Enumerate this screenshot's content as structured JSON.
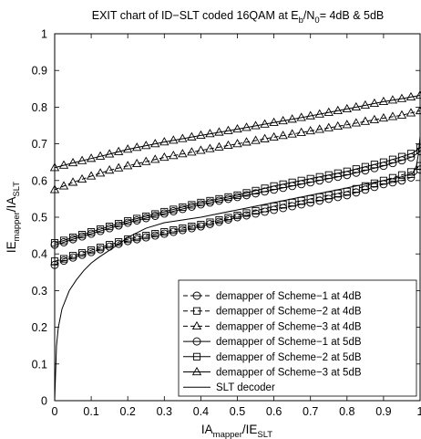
{
  "chart_data": {
    "type": "line",
    "title": {
      "main": "EXIT chart of ID−SLT coded 16QAM at E",
      "sub1": "b",
      "mid": "/N",
      "sub2": "0",
      "tail": "= 4dB & 5dB"
    },
    "xlabel": {
      "main1": "IA",
      "sub1": "mapper",
      "mid": "/IE",
      "sub2": "SLT"
    },
    "ylabel": {
      "main1": "IE",
      "sub1": "mapper",
      "mid": "/IA",
      "sub2": "SLT"
    },
    "xlim": [
      0,
      1
    ],
    "ylim": [
      0,
      1
    ],
    "x_ticks": [
      "0",
      "0.1",
      "0.2",
      "0.3",
      "0.4",
      "0.5",
      "0.6",
      "0.7",
      "0.8",
      "0.9",
      "1"
    ],
    "y_ticks": [
      "0",
      "0.1",
      "0.2",
      "0.3",
      "0.4",
      "0.5",
      "0.6",
      "0.7",
      "0.8",
      "0.9",
      "1"
    ],
    "grid": false,
    "legend_position": "lower-right",
    "series": [
      {
        "name": "demapper of Scheme−1 at 4dB",
        "style": "dashed",
        "marker": "circle-dash",
        "x": [
          0,
          0.02,
          0.05,
          0.1,
          0.15,
          0.2,
          0.3,
          0.4,
          0.5,
          0.6,
          0.7,
          0.8,
          0.9,
          0.95,
          0.98,
          1.0
        ],
        "y": [
          0.37,
          0.38,
          0.39,
          0.405,
          0.42,
          0.435,
          0.455,
          0.475,
          0.5,
          0.52,
          0.54,
          0.56,
          0.59,
          0.6,
          0.61,
          0.63
        ]
      },
      {
        "name": "demapper of Scheme−2 at 4dB",
        "style": "dashed",
        "marker": "square",
        "x": [
          0,
          0.02,
          0.05,
          0.1,
          0.15,
          0.2,
          0.3,
          0.4,
          0.5,
          0.6,
          0.7,
          0.8,
          0.9,
          0.95,
          0.98,
          1.0
        ],
        "y": [
          0.38,
          0.385,
          0.395,
          0.41,
          0.425,
          0.44,
          0.46,
          0.48,
          0.505,
          0.53,
          0.55,
          0.57,
          0.6,
          0.615,
          0.625,
          0.64
        ]
      },
      {
        "name": "demapper of Scheme−3 at 4dB",
        "style": "dashed",
        "marker": "triangle",
        "x": [
          0,
          0.05,
          0.1,
          0.15,
          0.2,
          0.3,
          0.4,
          0.5,
          0.6,
          0.7,
          0.8,
          0.9,
          0.95,
          1.0
        ],
        "y": [
          0.575,
          0.595,
          0.612,
          0.628,
          0.64,
          0.663,
          0.682,
          0.7,
          0.718,
          0.735,
          0.752,
          0.77,
          0.778,
          0.79
        ]
      },
      {
        "name": "demapper of Scheme−1 at 5dB",
        "style": "solid",
        "marker": "circle",
        "x": [
          0,
          0.02,
          0.05,
          0.1,
          0.15,
          0.2,
          0.3,
          0.4,
          0.5,
          0.6,
          0.7,
          0.8,
          0.9,
          0.95,
          0.98,
          1.0
        ],
        "y": [
          0.425,
          0.43,
          0.44,
          0.455,
          0.47,
          0.485,
          0.51,
          0.535,
          0.555,
          0.575,
          0.595,
          0.615,
          0.64,
          0.655,
          0.665,
          0.68
        ]
      },
      {
        "name": "demapper of Scheme−2 at 5dB",
        "style": "solid",
        "marker": "square",
        "x": [
          0,
          0.02,
          0.05,
          0.1,
          0.15,
          0.2,
          0.3,
          0.4,
          0.5,
          0.6,
          0.7,
          0.8,
          0.9,
          0.95,
          0.98,
          1.0
        ],
        "y": [
          0.43,
          0.435,
          0.445,
          0.46,
          0.475,
          0.49,
          0.515,
          0.54,
          0.56,
          0.585,
          0.605,
          0.625,
          0.65,
          0.665,
          0.675,
          0.69
        ]
      },
      {
        "name": "demapper of Scheme−3 at 5dB",
        "style": "solid",
        "marker": "triangle",
        "x": [
          0,
          0.05,
          0.1,
          0.15,
          0.2,
          0.3,
          0.4,
          0.5,
          0.6,
          0.7,
          0.8,
          0.9,
          0.95,
          1.0
        ],
        "y": [
          0.635,
          0.648,
          0.66,
          0.672,
          0.685,
          0.705,
          0.723,
          0.74,
          0.758,
          0.776,
          0.795,
          0.815,
          0.823,
          0.832
        ]
      },
      {
        "name": "SLT decoder",
        "style": "solid",
        "marker": "none",
        "x": [
          0,
          0.005,
          0.01,
          0.02,
          0.04,
          0.06,
          0.08,
          0.1,
          0.12,
          0.15,
          0.18,
          0.2,
          0.25,
          0.3,
          0.4,
          0.5,
          0.6,
          0.7,
          0.8,
          0.9,
          0.95,
          0.98,
          0.99,
          0.995,
          1.0
        ],
        "y": [
          0.0,
          0.15,
          0.2,
          0.25,
          0.3,
          0.33,
          0.355,
          0.375,
          0.39,
          0.41,
          0.43,
          0.445,
          0.47,
          0.485,
          0.5,
          0.52,
          0.54,
          0.56,
          0.58,
          0.6,
          0.61,
          0.62,
          0.64,
          0.67,
          0.72
        ]
      }
    ]
  }
}
